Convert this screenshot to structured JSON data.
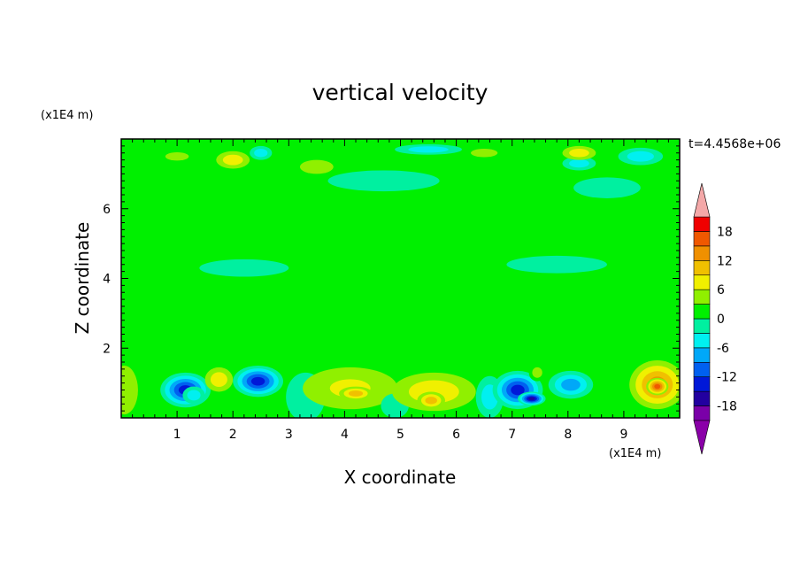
{
  "chart_data": {
    "type": "heatmap",
    "title": "vertical velocity",
    "xlabel": "X coordinate",
    "ylabel": "Z coordinate",
    "x_unit": "(x1E4 m)",
    "y_unit": "(x1E4 m)",
    "time_label": "t=4.4568e+06",
    "xlim": [
      0,
      10
    ],
    "ylim": [
      0,
      8
    ],
    "xticks": [
      1,
      2,
      3,
      4,
      5,
      6,
      7,
      8,
      9
    ],
    "yticks": [
      2,
      4,
      6
    ],
    "colorbar": {
      "levels": [
        -21,
        -18,
        -15,
        -12,
        -9,
        -6,
        -3,
        0,
        3,
        6,
        9,
        12,
        15,
        18,
        21
      ],
      "tick_labels": [
        "18",
        "12",
        "6",
        "0",
        "-6",
        "-12",
        "-18"
      ],
      "tick_values": [
        18,
        12,
        6,
        0,
        -6,
        -12,
        -18
      ],
      "colors": [
        "#7a00a8",
        "#2200a0",
        "#0018d8",
        "#0060f0",
        "#00a8f8",
        "#00f0f0",
        "#00f0a0",
        "#00f000",
        "#90f000",
        "#f0f000",
        "#f0c000",
        "#f09000",
        "#f05800",
        "#f00000"
      ],
      "under_color": "#8a00a8",
      "over_color": "#f4a8a8"
    },
    "background_value": 0.5,
    "features": [
      {
        "x": 1.15,
        "z": 0.8,
        "rx": 0.45,
        "rz": 0.5,
        "value": -14
      },
      {
        "x": 1.3,
        "z": 0.65,
        "rx": 0.2,
        "rz": 0.25,
        "value": -4
      },
      {
        "x": 0.05,
        "z": 0.8,
        "rx": 0.25,
        "rz": 0.7,
        "value": 4
      },
      {
        "x": 1.75,
        "z": 1.1,
        "rx": 0.25,
        "rz": 0.35,
        "value": 6
      },
      {
        "x": 2.45,
        "z": 1.05,
        "rx": 0.45,
        "rz": 0.45,
        "value": -15
      },
      {
        "x": 3.3,
        "z": 0.6,
        "rx": 0.35,
        "rz": 0.7,
        "value": -3
      },
      {
        "x": 4.1,
        "z": 0.85,
        "rx": 0.85,
        "rz": 0.6,
        "value": 8
      },
      {
        "x": 4.2,
        "z": 0.7,
        "rx": 0.3,
        "rz": 0.2,
        "value": 10
      },
      {
        "x": 4.9,
        "z": 0.35,
        "rx": 0.25,
        "rz": 0.35,
        "value": -3
      },
      {
        "x": 5.6,
        "z": 0.75,
        "rx": 0.75,
        "rz": 0.55,
        "value": 7
      },
      {
        "x": 5.55,
        "z": 0.5,
        "rx": 0.25,
        "rz": 0.25,
        "value": 10
      },
      {
        "x": 6.6,
        "z": 0.6,
        "rx": 0.25,
        "rz": 0.6,
        "value": -5
      },
      {
        "x": 7.1,
        "z": 0.8,
        "rx": 0.45,
        "rz": 0.55,
        "value": -15
      },
      {
        "x": 7.35,
        "z": 0.55,
        "rx": 0.25,
        "rz": 0.2,
        "value": -18
      },
      {
        "x": 7.45,
        "z": 1.3,
        "rx": 0.15,
        "rz": 0.25,
        "value": 5
      },
      {
        "x": 8.05,
        "z": 0.95,
        "rx": 0.4,
        "rz": 0.4,
        "value": -9
      },
      {
        "x": 9.6,
        "z": 0.95,
        "rx": 0.5,
        "rz": 0.7,
        "value": 13
      },
      {
        "x": 9.6,
        "z": 0.9,
        "rx": 0.2,
        "rz": 0.25,
        "value": 16
      },
      {
        "x": 1.0,
        "z": 7.5,
        "rx": 0.35,
        "rz": 0.2,
        "value": 5
      },
      {
        "x": 2.0,
        "z": 7.4,
        "rx": 0.3,
        "rz": 0.25,
        "value": 6
      },
      {
        "x": 2.5,
        "z": 7.6,
        "rx": 0.2,
        "rz": 0.2,
        "value": -6
      },
      {
        "x": 3.5,
        "z": 7.2,
        "rx": 0.3,
        "rz": 0.2,
        "value": 4
      },
      {
        "x": 6.5,
        "z": 7.6,
        "rx": 0.4,
        "rz": 0.2,
        "value": 5
      },
      {
        "x": 8.2,
        "z": 7.3,
        "rx": 0.3,
        "rz": 0.2,
        "value": -5
      },
      {
        "x": 8.2,
        "z": 7.6,
        "rx": 0.3,
        "rz": 0.2,
        "value": 6
      },
      {
        "x": 9.3,
        "z": 7.5,
        "rx": 0.4,
        "rz": 0.25,
        "value": -6
      },
      {
        "x": 5.5,
        "z": 7.7,
        "rx": 0.6,
        "rz": 0.15,
        "value": -4
      },
      {
        "x": 3.0,
        "z": 5.3,
        "rx": 1.6,
        "rz": 0.35,
        "value": 2
      },
      {
        "x": 6.0,
        "z": 5.1,
        "rx": 1.2,
        "rz": 0.25,
        "value": 2
      },
      {
        "x": 1.5,
        "z": 6.2,
        "rx": 1.2,
        "rz": 0.3,
        "value": 2
      },
      {
        "x": 8.5,
        "z": 5.8,
        "rx": 1.0,
        "rz": 0.3,
        "value": 2
      },
      {
        "x": 4.5,
        "z": 3.4,
        "rx": 1.8,
        "rz": 0.3,
        "value": 2
      },
      {
        "x": 7.5,
        "z": 3.0,
        "rx": 1.2,
        "rz": 0.3,
        "value": 2
      },
      {
        "x": 2.2,
        "z": 2.8,
        "rx": 1.0,
        "rz": 0.25,
        "value": 2
      },
      {
        "x": 4.7,
        "z": 6.8,
        "rx": 1.0,
        "rz": 0.3,
        "value": -1.5
      },
      {
        "x": 2.2,
        "z": 4.3,
        "rx": 0.8,
        "rz": 0.25,
        "value": -1.5
      },
      {
        "x": 7.8,
        "z": 4.4,
        "rx": 0.9,
        "rz": 0.25,
        "value": -1.5
      },
      {
        "x": 8.7,
        "z": 6.6,
        "rx": 0.6,
        "rz": 0.3,
        "value": -1.5
      }
    ]
  }
}
